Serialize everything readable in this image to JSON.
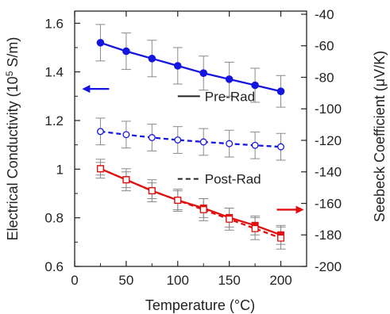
{
  "chart_data": {
    "type": "line",
    "xlabel": "Temperature (°C)",
    "ylabel_left_prefix": "Electrical Conductivity (10",
    "ylabel_left_exponent": "5",
    "ylabel_left_suffix": " S/m)",
    "ylabel_right": "Seebeck Coefficient (μV/K)",
    "xlim": [
      0,
      225
    ],
    "ylim_left": [
      0.6,
      1.65
    ],
    "ylim_right": [
      -200,
      -38
    ],
    "x_ticks": [
      0,
      50,
      100,
      150,
      200
    ],
    "x_tick_labels": [
      "0",
      "50",
      "100",
      "150",
      "200"
    ],
    "y_left_ticks": [
      0.6,
      0.8,
      1.0,
      1.2,
      1.4,
      1.6
    ],
    "y_left_tick_labels": [
      "0.6",
      "0.8",
      "1",
      "1.2",
      "1.4",
      "1.6"
    ],
    "y_right_ticks": [
      -200,
      -180,
      -160,
      -140,
      -120,
      -100,
      -80,
      -60,
      -40
    ],
    "y_right_tick_labels": [
      "-200",
      "-180",
      "-160",
      "-140",
      "-120",
      "-100",
      "-80",
      "-60",
      "-40"
    ],
    "x": [
      25,
      50,
      75,
      100,
      125,
      150,
      175,
      200
    ],
    "series": [
      {
        "name": "Pre-Rad",
        "axis": "left",
        "color": "#1515e0",
        "line": "solid",
        "marker": "filled-circle",
        "values": [
          1.52,
          1.485,
          1.455,
          1.425,
          1.395,
          1.37,
          1.345,
          1.32
        ],
        "error": [
          0.075,
          0.075,
          0.075,
          0.075,
          0.07,
          0.07,
          0.07,
          0.065
        ]
      },
      {
        "name": "Post-Rad",
        "axis": "left",
        "color": "#1515e0",
        "line": "dashed",
        "marker": "open-circle",
        "values": [
          1.155,
          1.142,
          1.13,
          1.12,
          1.112,
          1.105,
          1.098,
          1.092
        ],
        "error": [
          0.055,
          0.055,
          0.055,
          0.055,
          0.055,
          0.055,
          0.055,
          0.055
        ]
      },
      {
        "name": "Pre-Rad",
        "axis": "right",
        "color": "#e01010",
        "line": "solid",
        "marker": "filled-square",
        "values": [
          -138,
          -145,
          -152,
          -158,
          -163,
          -169,
          -174,
          -180
        ],
        "error": [
          4,
          5,
          5,
          6,
          6,
          6,
          6,
          6
        ]
      },
      {
        "name": "Post-Rad",
        "axis": "right",
        "color": "#e01010",
        "line": "dashed",
        "marker": "open-square",
        "values": [
          -138,
          -145,
          -152,
          -158,
          -164,
          -170,
          -176,
          -182
        ],
        "error": [
          6,
          7,
          7,
          7,
          7,
          7,
          7,
          7
        ]
      }
    ],
    "legend": [
      {
        "label": "Pre-Rad",
        "line": "solid"
      },
      {
        "label": "Post-Rad",
        "line": "dashed"
      }
    ],
    "arrows": [
      {
        "direction": "left",
        "color": "#1515e0",
        "at": {
          "x": 18,
          "y": 1.33
        }
      },
      {
        "direction": "right",
        "color": "#e01010",
        "at": {
          "x": 210,
          "y": -164
        }
      }
    ]
  }
}
